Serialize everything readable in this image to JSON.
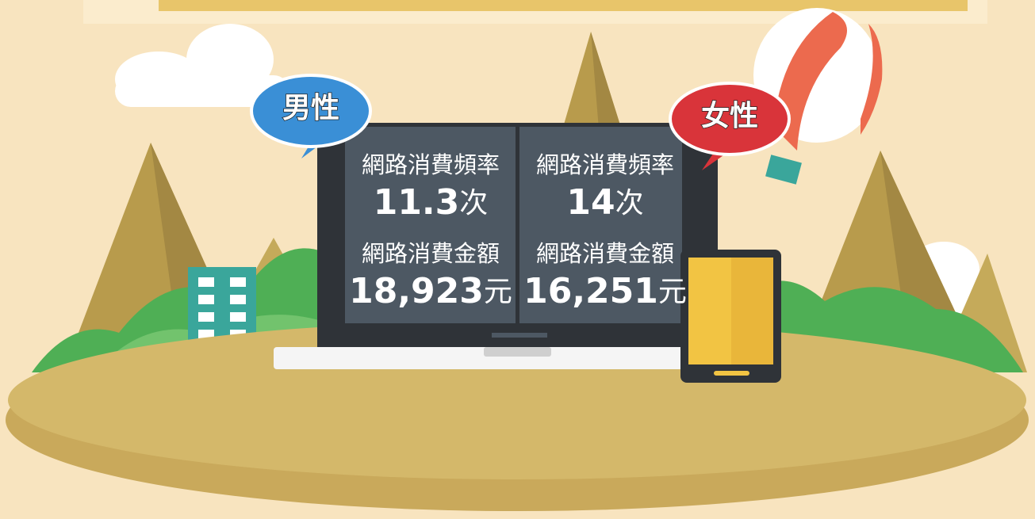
{
  "panels": [
    {
      "label": "男性",
      "frequency": {
        "label": "網路消費頻率",
        "value": "11.3",
        "unit": "次"
      },
      "amount": {
        "label": "網路消費金額",
        "value": "18,923",
        "unit": "元"
      }
    },
    {
      "label": "女性",
      "frequency": {
        "label": "網路消費頻率",
        "value": "14",
        "unit": "次"
      },
      "amount": {
        "label": "網路消費金額",
        "value": "16,251",
        "unit": "元"
      }
    }
  ]
}
